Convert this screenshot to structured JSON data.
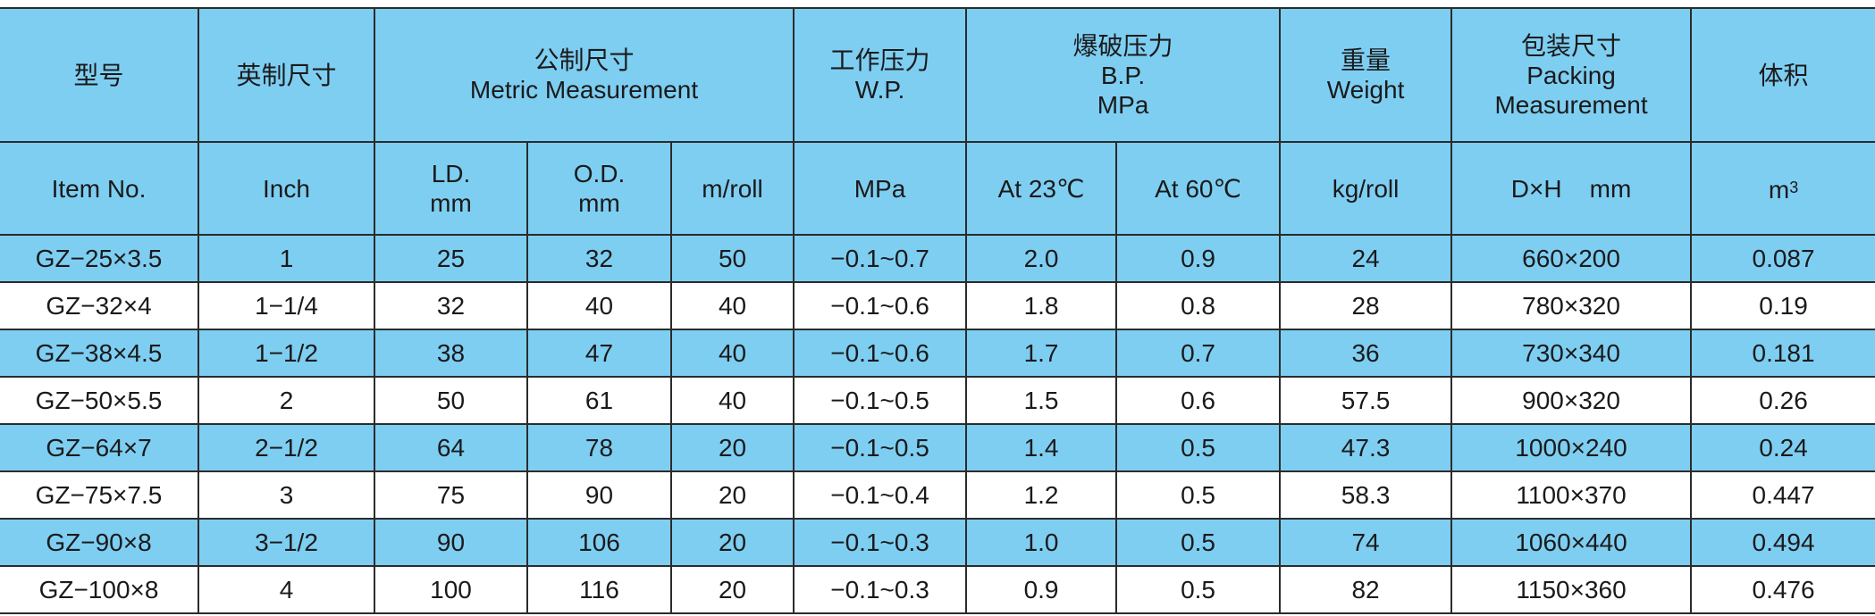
{
  "header": {
    "model": "型号",
    "inch_size": "英制尺寸",
    "metric_cn": "公制尺寸",
    "metric_en": "Metric Measurement",
    "wp_cn": "工作压力",
    "wp_en": "W.P.",
    "bp_cn": "爆破压力",
    "bp_en": "B.P.",
    "bp_unit": "MPa",
    "weight_cn": "重量",
    "weight_en": "Weight",
    "pack_cn": "包装尺寸",
    "pack_en1": "Packing",
    "pack_en2": "Measurement",
    "volume": "体积"
  },
  "subheader": {
    "item_no": "Item No.",
    "inch": "Inch",
    "id_label": "LD.",
    "id_unit": "mm",
    "od_label": "O.D.",
    "od_unit": "mm",
    "m_roll": "m/roll",
    "wp_unit": "MPa",
    "at23": "At 23℃",
    "at60": "At 60℃",
    "kg_roll": "kg/roll",
    "dh_mm": "D×H    mm",
    "m3_base": "m",
    "m3_exp": "3"
  },
  "rows": [
    [
      "GZ−25×3.5",
      "1",
      "25",
      "32",
      "50",
      "−0.1~0.7",
      "2.0",
      "0.9",
      "24",
      "660×200",
      "0.087"
    ],
    [
      "GZ−32×4",
      "1−1/4",
      "32",
      "40",
      "40",
      "−0.1~0.6",
      "1.8",
      "0.8",
      "28",
      "780×320",
      "0.19"
    ],
    [
      "GZ−38×4.5",
      "1−1/2",
      "38",
      "47",
      "40",
      "−0.1~0.6",
      "1.7",
      "0.7",
      "36",
      "730×340",
      "0.181"
    ],
    [
      "GZ−50×5.5",
      "2",
      "50",
      "61",
      "40",
      "−0.1~0.5",
      "1.5",
      "0.6",
      "57.5",
      "900×320",
      "0.26"
    ],
    [
      "GZ−64×7",
      "2−1/2",
      "64",
      "78",
      "20",
      "−0.1~0.5",
      "1.4",
      "0.5",
      "47.3",
      "1000×240",
      "0.24"
    ],
    [
      "GZ−75×7.5",
      "3",
      "75",
      "90",
      "20",
      "−0.1~0.4",
      "1.2",
      "0.5",
      "58.3",
      "1100×370",
      "0.447"
    ],
    [
      "GZ−90×8",
      "3−1/2",
      "90",
      "106",
      "20",
      "−0.1~0.3",
      "1.0",
      "0.5",
      "74",
      "1060×440",
      "0.494"
    ],
    [
      "GZ−100×8",
      "4",
      "100",
      "116",
      "20",
      "−0.1~0.3",
      "0.9",
      "0.5",
      "82",
      "1150×360",
      "0.476"
    ]
  ],
  "colors": {
    "header_bg": "#7ecef2",
    "row_bg": "#7ecef2",
    "alt_row_bg": "#ffffff",
    "border": "#2b2b2b"
  }
}
